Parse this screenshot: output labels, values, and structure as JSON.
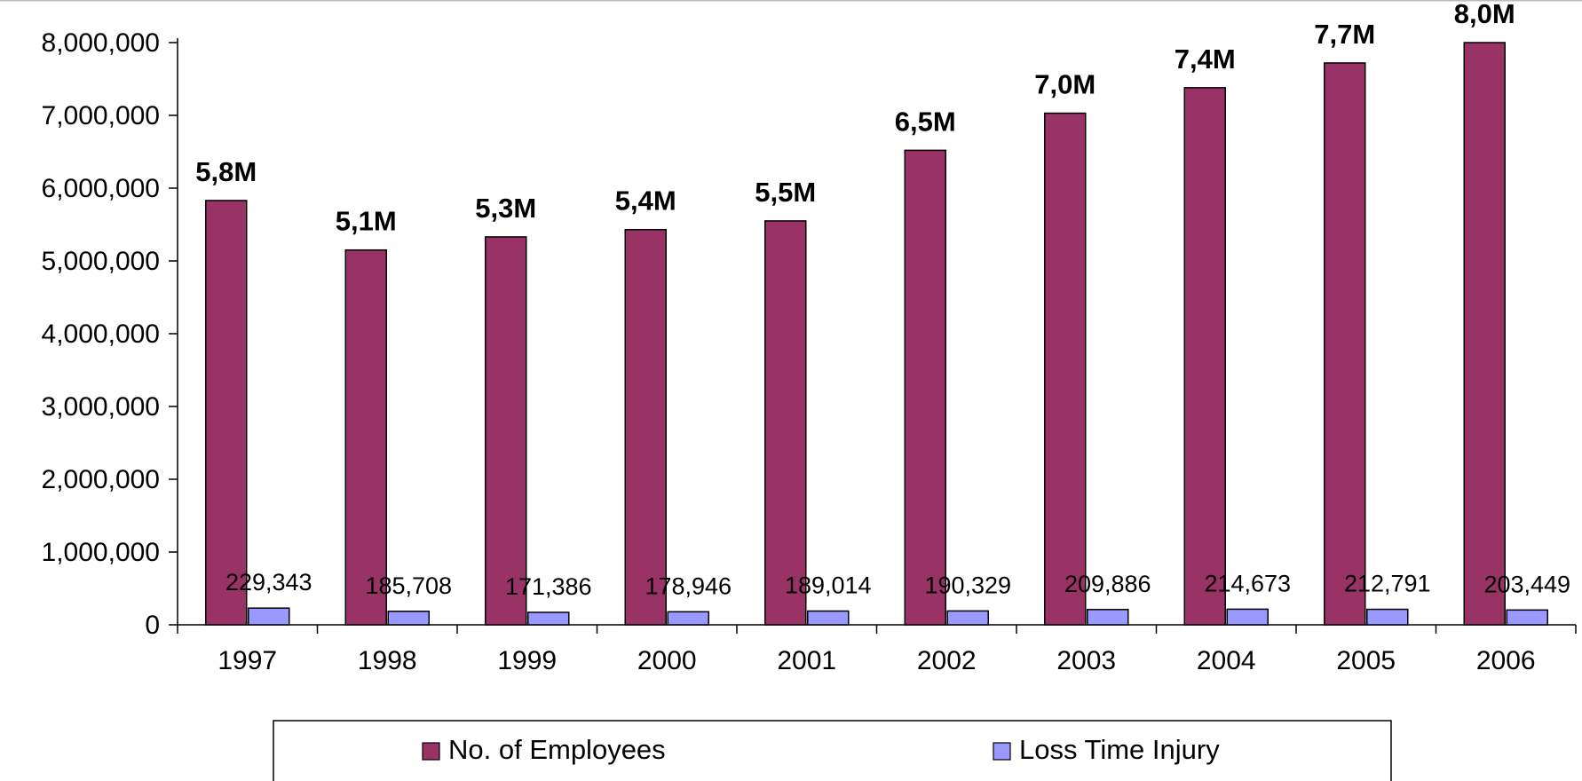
{
  "chart_data": {
    "type": "bar",
    "title": "",
    "xlabel": "",
    "ylabel": "",
    "categories": [
      "1997",
      "1998",
      "1999",
      "2000",
      "2001",
      "2002",
      "2003",
      "2004",
      "2005",
      "2006"
    ],
    "series": [
      {
        "name": "No. of Employees",
        "color": "#993366",
        "values": [
          5830000,
          5150000,
          5330000,
          5430000,
          5550000,
          6520000,
          7030000,
          7380000,
          7720000,
          8000000
        ],
        "data_labels": [
          "5,8M",
          "5,1M",
          "5,3M",
          "5,4M",
          "5,5M",
          "6,5M",
          "7,0M",
          "7,4M",
          "7,7M",
          "8,0M"
        ]
      },
      {
        "name": "Loss Time Injury",
        "color": "#9999ff",
        "values": [
          229343,
          185708,
          171386,
          178946,
          189014,
          190329,
          209886,
          214673,
          212791,
          203449
        ],
        "data_labels": [
          "229,343",
          "185,708",
          "171,386",
          "178,946",
          "189,014",
          "190,329",
          "209,886",
          "214,673",
          "212,791",
          "203,449"
        ]
      }
    ],
    "ylim": [
      0,
      8000000
    ],
    "yticks": [
      0,
      1000000,
      2000000,
      3000000,
      4000000,
      5000000,
      6000000,
      7000000,
      8000000
    ],
    "ytick_labels": [
      "0",
      "1,000,000",
      "2,000,000",
      "3,000,000",
      "4,000,000",
      "5,000,000",
      "6,000,000",
      "7,000,000",
      "8,000,000"
    ],
    "grid": false,
    "legend_position": "bottom"
  }
}
